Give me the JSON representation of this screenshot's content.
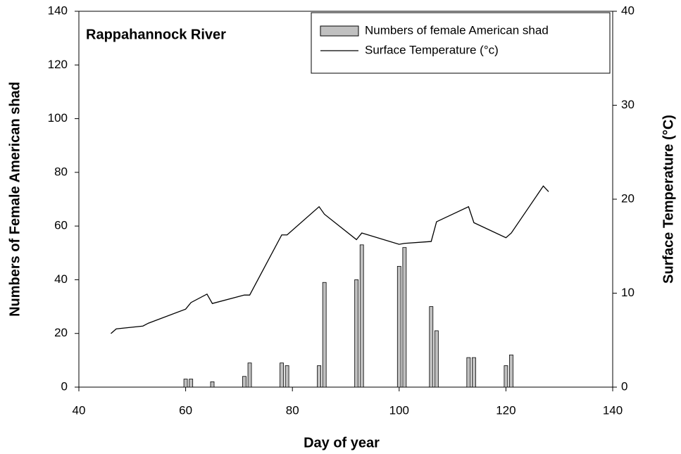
{
  "chart_data": {
    "type": "bar",
    "annotation": "Rappahannock River",
    "x_label": "Day of year",
    "y_label": "Numbers of Female American shad",
    "y2_label": "Surface Temperature (°C)",
    "xlim": [
      40,
      140
    ],
    "xticks": [
      40,
      60,
      80,
      100,
      120,
      140
    ],
    "ylim": [
      0,
      140
    ],
    "yticks": [
      0,
      20,
      40,
      60,
      80,
      100,
      120,
      140
    ],
    "y2lim": [
      0,
      40
    ],
    "y2ticks": [
      0,
      10,
      20,
      30,
      40
    ],
    "legend": "upper right",
    "series": [
      {
        "name": "Numbers of female American shad",
        "type": "bar",
        "color": "#c0c0c0",
        "x": [
          60,
          61,
          65,
          71,
          72,
          78,
          79,
          85,
          86,
          92,
          93,
          100,
          101,
          106,
          107,
          113,
          114,
          120,
          121
        ],
        "values": [
          3,
          3,
          2,
          4,
          9,
          9,
          8,
          8,
          39,
          40,
          53,
          45,
          52,
          30,
          21,
          11,
          11,
          8,
          12
        ]
      },
      {
        "name": "Surface Temperature (°c)",
        "type": "line",
        "axis": "y2",
        "color": "#000000",
        "x": [
          46,
          47,
          52,
          53,
          60,
          61,
          64,
          65,
          71,
          72,
          78,
          79,
          85,
          86,
          92,
          93,
          100,
          101,
          106,
          107,
          113,
          114,
          120,
          121,
          127,
          128
        ],
        "values": [
          5.7,
          6.2,
          6.5,
          6.8,
          8.3,
          9.0,
          9.9,
          8.9,
          9.8,
          9.8,
          16.2,
          16.2,
          19.2,
          18.4,
          15.7,
          16.4,
          15.2,
          15.3,
          15.5,
          17.6,
          19.2,
          17.5,
          15.9,
          16.4,
          21.4,
          20.8
        ]
      }
    ]
  }
}
